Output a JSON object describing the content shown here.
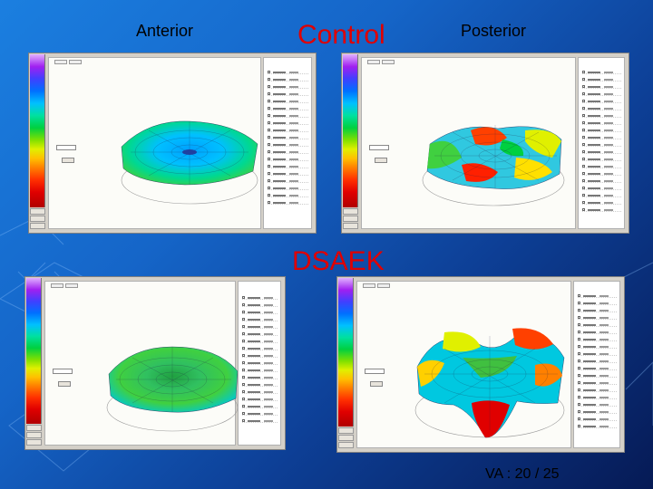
{
  "slide": {
    "anterior_label": "Anterior",
    "control_label": "Control",
    "posterior_label": "Posterior",
    "dsaek_label": "DSAEK",
    "footer": "VA : 20 / 25"
  },
  "colors": {
    "title_red": "#e00000",
    "panel_bg": "#d4d0c8",
    "background_start": "#1b7fe0",
    "background_end": "#061a55"
  },
  "panels": [
    {
      "name": "control-anterior",
      "surface": "flat-blue-green"
    },
    {
      "name": "control-posterior",
      "surface": "wavy-multicolor"
    },
    {
      "name": "dsaek-anterior",
      "surface": "flat-green"
    },
    {
      "name": "dsaek-posterior",
      "surface": "saddle-multicolor"
    }
  ]
}
